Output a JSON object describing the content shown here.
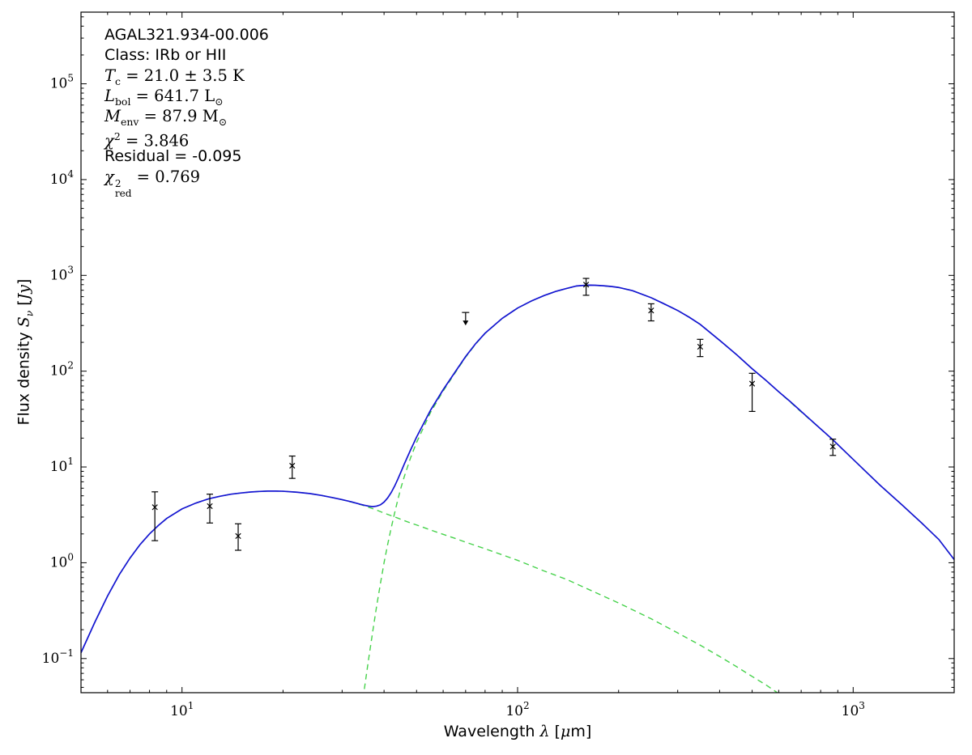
{
  "figure": {
    "background": "#ffffff",
    "frame_color": "#000000"
  },
  "annotation": {
    "lines": [
      {
        "font": "sans",
        "segments": [
          {
            "k": "t",
            "v": "AGAL321.934-00.006"
          }
        ]
      },
      {
        "font": "sans",
        "segments": [
          {
            "k": "t",
            "v": "Class: IRb or HII"
          }
        ]
      },
      {
        "font": "math",
        "segments": [
          {
            "k": "i",
            "v": "T"
          },
          {
            "k": "sub",
            "v": "c"
          },
          {
            "k": "t",
            "v": " = 21.0 ± 3.5 K"
          }
        ]
      },
      {
        "font": "math",
        "segments": [
          {
            "k": "i",
            "v": "L"
          },
          {
            "k": "sub",
            "v": "bol"
          },
          {
            "k": "t",
            "v": " = 641.7 L"
          },
          {
            "k": "sub",
            "v": "⊙"
          }
        ]
      },
      {
        "font": "math",
        "segments": [
          {
            "k": "i",
            "v": "M"
          },
          {
            "k": "sub",
            "v": "env"
          },
          {
            "k": "t",
            "v": " = 87.9 M"
          },
          {
            "k": "sub",
            "v": "⊙"
          }
        ]
      },
      {
        "font": "math",
        "segments": [
          {
            "k": "i",
            "v": "χ"
          },
          {
            "k": "sup",
            "v": "2"
          },
          {
            "k": "t",
            "v": " = 3.846"
          }
        ]
      },
      {
        "font": "sans",
        "segments": [
          {
            "k": "t",
            "v": "Residual = -0.095"
          }
        ]
      },
      {
        "font": "math",
        "segments": [
          {
            "k": "i",
            "v": "χ"
          },
          {
            "k": "ss",
            "sup": "2",
            "sub": "red"
          },
          {
            "k": "t",
            "v": " = 0.769"
          }
        ]
      }
    ]
  },
  "chart_data": {
    "type": "line",
    "title": "",
    "xlabel": "Wavelength λ [μm]",
    "ylabel": "Flux density Sν [Jy]",
    "xlabel_segments": [
      {
        "k": "t",
        "v": "Wavelength "
      },
      {
        "k": "i",
        "v": "λ"
      },
      {
        "k": "t",
        "v": " ["
      },
      {
        "k": "i",
        "v": "μ"
      },
      {
        "k": "t",
        "v": "m]"
      }
    ],
    "ylabel_segments": [
      {
        "k": "t",
        "v": "Flux density "
      },
      {
        "k": "i",
        "v": "S"
      },
      {
        "k": "isub",
        "v": "ν"
      },
      {
        "k": "t",
        "v": " ["
      },
      {
        "k": "i",
        "v": "Jy"
      },
      {
        "k": "t",
        "v": "]"
      }
    ],
    "x_scale": "log",
    "y_scale": "log",
    "grid": false,
    "legend": null,
    "xlim": [
      5,
      2000
    ],
    "ylim": [
      0.044,
      560000
    ],
    "x_ticks": [
      {
        "value": 10,
        "base": "10",
        "exp": "1"
      },
      {
        "value": 100,
        "base": "10",
        "exp": "2"
      },
      {
        "value": 1000,
        "base": "10",
        "exp": "3"
      }
    ],
    "y_ticks": [
      {
        "value": 0.1,
        "base": "10",
        "exp": "−1"
      },
      {
        "value": 1,
        "base": "10",
        "exp": "0"
      },
      {
        "value": 10,
        "base": "10",
        "exp": "1"
      },
      {
        "value": 100,
        "base": "10",
        "exp": "2"
      },
      {
        "value": 1000,
        "base": "10",
        "exp": "3"
      },
      {
        "value": 10000,
        "base": "10",
        "exp": "4"
      },
      {
        "value": 100000,
        "base": "10",
        "exp": "5"
      }
    ],
    "colors": {
      "model_total": "#1414d2",
      "components": "#46d24b",
      "data": "#000000"
    },
    "series": [
      {
        "name": "warm-component",
        "style": "dashed",
        "color": "#46d24b",
        "points": [
          [
            5,
            0.115
          ],
          [
            5.5,
            0.24
          ],
          [
            6,
            0.45
          ],
          [
            6.5,
            0.75
          ],
          [
            7,
            1.12
          ],
          [
            7.5,
            1.55
          ],
          [
            8,
            2.0
          ],
          [
            8.5,
            2.45
          ],
          [
            9,
            2.9
          ],
          [
            10,
            3.65
          ],
          [
            11,
            4.2
          ],
          [
            12,
            4.65
          ],
          [
            13,
            4.95
          ],
          [
            14,
            5.2
          ],
          [
            15,
            5.35
          ],
          [
            16,
            5.48
          ],
          [
            17,
            5.55
          ],
          [
            18,
            5.6
          ],
          [
            19,
            5.6
          ],
          [
            20,
            5.58
          ],
          [
            22,
            5.45
          ],
          [
            24,
            5.28
          ],
          [
            26,
            5.05
          ],
          [
            28,
            4.8
          ],
          [
            30,
            4.55
          ],
          [
            32,
            4.3
          ],
          [
            34,
            4.05
          ],
          [
            36,
            3.8
          ],
          [
            38,
            3.55
          ],
          [
            40,
            3.3
          ],
          [
            42,
            3.1
          ],
          [
            44,
            2.92
          ],
          [
            46,
            2.75
          ],
          [
            48,
            2.6
          ],
          [
            50,
            2.48
          ],
          [
            55,
            2.2
          ],
          [
            60,
            1.98
          ],
          [
            65,
            1.8
          ],
          [
            70,
            1.64
          ],
          [
            80,
            1.4
          ],
          [
            90,
            1.21
          ],
          [
            100,
            1.06
          ],
          [
            120,
            0.82
          ],
          [
            140,
            0.67
          ],
          [
            150,
            0.6
          ],
          [
            175,
            0.47
          ],
          [
            200,
            0.38
          ],
          [
            250,
            0.26
          ],
          [
            300,
            0.185
          ],
          [
            350,
            0.138
          ],
          [
            400,
            0.105
          ],
          [
            450,
            0.082
          ],
          [
            500,
            0.065
          ],
          [
            550,
            0.053
          ],
          [
            600,
            0.043
          ],
          [
            650,
            0.036
          ]
        ]
      },
      {
        "name": "cold-component",
        "style": "dashed",
        "color": "#46d24b",
        "points": [
          [
            33,
            0.012
          ],
          [
            34,
            0.025
          ],
          [
            35,
            0.05
          ],
          [
            36,
            0.1
          ],
          [
            37,
            0.19
          ],
          [
            38,
            0.35
          ],
          [
            39,
            0.6
          ],
          [
            40,
            1.0
          ],
          [
            41,
            1.55
          ],
          [
            42,
            2.3
          ],
          [
            43,
            3.3
          ],
          [
            44,
            4.6
          ],
          [
            45,
            6.2
          ],
          [
            46,
            8.0
          ],
          [
            48,
            12.5
          ],
          [
            50,
            18
          ],
          [
            55,
            37
          ],
          [
            60,
            62
          ],
          [
            65,
            95
          ],
          [
            70,
            140
          ],
          [
            75,
            192
          ],
          [
            80,
            248
          ],
          [
            90,
            355
          ],
          [
            100,
            455
          ],
          [
            110,
            540
          ],
          [
            120,
            615
          ],
          [
            130,
            680
          ],
          [
            140,
            730
          ],
          [
            150,
            775
          ],
          [
            160,
            788
          ],
          [
            165,
            790
          ],
          [
            170,
            788
          ],
          [
            180,
            778
          ],
          [
            190,
            765
          ],
          [
            200,
            748
          ],
          [
            220,
            693
          ],
          [
            250,
            585
          ],
          [
            270,
            515
          ],
          [
            300,
            430
          ],
          [
            325,
            365
          ],
          [
            350,
            308
          ],
          [
            400,
            210
          ],
          [
            450,
            148
          ],
          [
            500,
            106
          ],
          [
            550,
            80
          ],
          [
            600,
            61
          ],
          [
            650,
            47.5
          ],
          [
            700,
            37.5
          ],
          [
            800,
            25
          ],
          [
            870,
            19.2
          ],
          [
            1000,
            12
          ],
          [
            1200,
            6.5
          ],
          [
            1400,
            4.0
          ],
          [
            1600,
            2.6
          ],
          [
            1800,
            1.75
          ],
          [
            2000,
            1.08
          ]
        ]
      },
      {
        "name": "total-model",
        "style": "solid",
        "color": "#1414d2",
        "points": [
          [
            5,
            0.115
          ],
          [
            5.5,
            0.24
          ],
          [
            6,
            0.45
          ],
          [
            6.5,
            0.75
          ],
          [
            7,
            1.12
          ],
          [
            7.5,
            1.55
          ],
          [
            8,
            2.0
          ],
          [
            8.5,
            2.45
          ],
          [
            9,
            2.9
          ],
          [
            10,
            3.65
          ],
          [
            11,
            4.2
          ],
          [
            12,
            4.65
          ],
          [
            13,
            4.95
          ],
          [
            14,
            5.2
          ],
          [
            15,
            5.35
          ],
          [
            16,
            5.48
          ],
          [
            17,
            5.55
          ],
          [
            18,
            5.6
          ],
          [
            19,
            5.6
          ],
          [
            20,
            5.58
          ],
          [
            22,
            5.45
          ],
          [
            24,
            5.28
          ],
          [
            26,
            5.05
          ],
          [
            28,
            4.8
          ],
          [
            30,
            4.56
          ],
          [
            32,
            4.32
          ],
          [
            34,
            4.08
          ],
          [
            35,
            3.98
          ],
          [
            36,
            3.9
          ],
          [
            37,
            3.85
          ],
          [
            38,
            3.9
          ],
          [
            39,
            4.02
          ],
          [
            40,
            4.3
          ],
          [
            41,
            4.75
          ],
          [
            42,
            5.4
          ],
          [
            43,
            6.3
          ],
          [
            44,
            7.5
          ],
          [
            45,
            9.0
          ],
          [
            46,
            10.8
          ],
          [
            48,
            15.1
          ],
          [
            50,
            20.5
          ],
          [
            55,
            39
          ],
          [
            60,
            64
          ],
          [
            65,
            97
          ],
          [
            70,
            142
          ],
          [
            75,
            194
          ],
          [
            80,
            249
          ],
          [
            90,
            356
          ],
          [
            100,
            456
          ],
          [
            110,
            541
          ],
          [
            120,
            616
          ],
          [
            130,
            681
          ],
          [
            140,
            731
          ],
          [
            150,
            776
          ],
          [
            160,
            789
          ],
          [
            165,
            791
          ],
          [
            170,
            789
          ],
          [
            180,
            779
          ],
          [
            190,
            766
          ],
          [
            200,
            748
          ],
          [
            220,
            693
          ],
          [
            250,
            585
          ],
          [
            270,
            515
          ],
          [
            300,
            430
          ],
          [
            325,
            365
          ],
          [
            350,
            308
          ],
          [
            400,
            210
          ],
          [
            450,
            148
          ],
          [
            500,
            106
          ],
          [
            550,
            80
          ],
          [
            600,
            61
          ],
          [
            650,
            48
          ],
          [
            700,
            38
          ],
          [
            800,
            25
          ],
          [
            870,
            19.2
          ],
          [
            1000,
            12
          ],
          [
            1200,
            6.5
          ],
          [
            1400,
            4.0
          ],
          [
            1600,
            2.6
          ],
          [
            1800,
            1.75
          ],
          [
            2000,
            1.08
          ]
        ]
      }
    ],
    "data_points": [
      {
        "x": 8.3,
        "y": 3.8,
        "y_lo": 1.7,
        "y_hi": 5.5,
        "kind": "detection"
      },
      {
        "x": 12.1,
        "y": 3.9,
        "y_lo": 2.6,
        "y_hi": 5.2,
        "kind": "detection"
      },
      {
        "x": 14.7,
        "y": 1.9,
        "y_lo": 1.35,
        "y_hi": 2.55,
        "kind": "detection"
      },
      {
        "x": 21.3,
        "y": 10.3,
        "y_lo": 7.6,
        "y_hi": 13.0,
        "kind": "detection"
      },
      {
        "x": 70,
        "y": 410,
        "kind": "upper_limit"
      },
      {
        "x": 160,
        "y": 800,
        "y_lo": 620,
        "y_hi": 930,
        "kind": "detection"
      },
      {
        "x": 250,
        "y": 430,
        "y_lo": 335,
        "y_hi": 505,
        "kind": "detection"
      },
      {
        "x": 350,
        "y": 180,
        "y_lo": 142,
        "y_hi": 215,
        "kind": "detection"
      },
      {
        "x": 500,
        "y": 74,
        "y_lo": 38,
        "y_hi": 95,
        "kind": "detection"
      },
      {
        "x": 870,
        "y": 16.3,
        "y_lo": 13.2,
        "y_hi": 19.5,
        "kind": "detection"
      }
    ],
    "marker": "x"
  }
}
